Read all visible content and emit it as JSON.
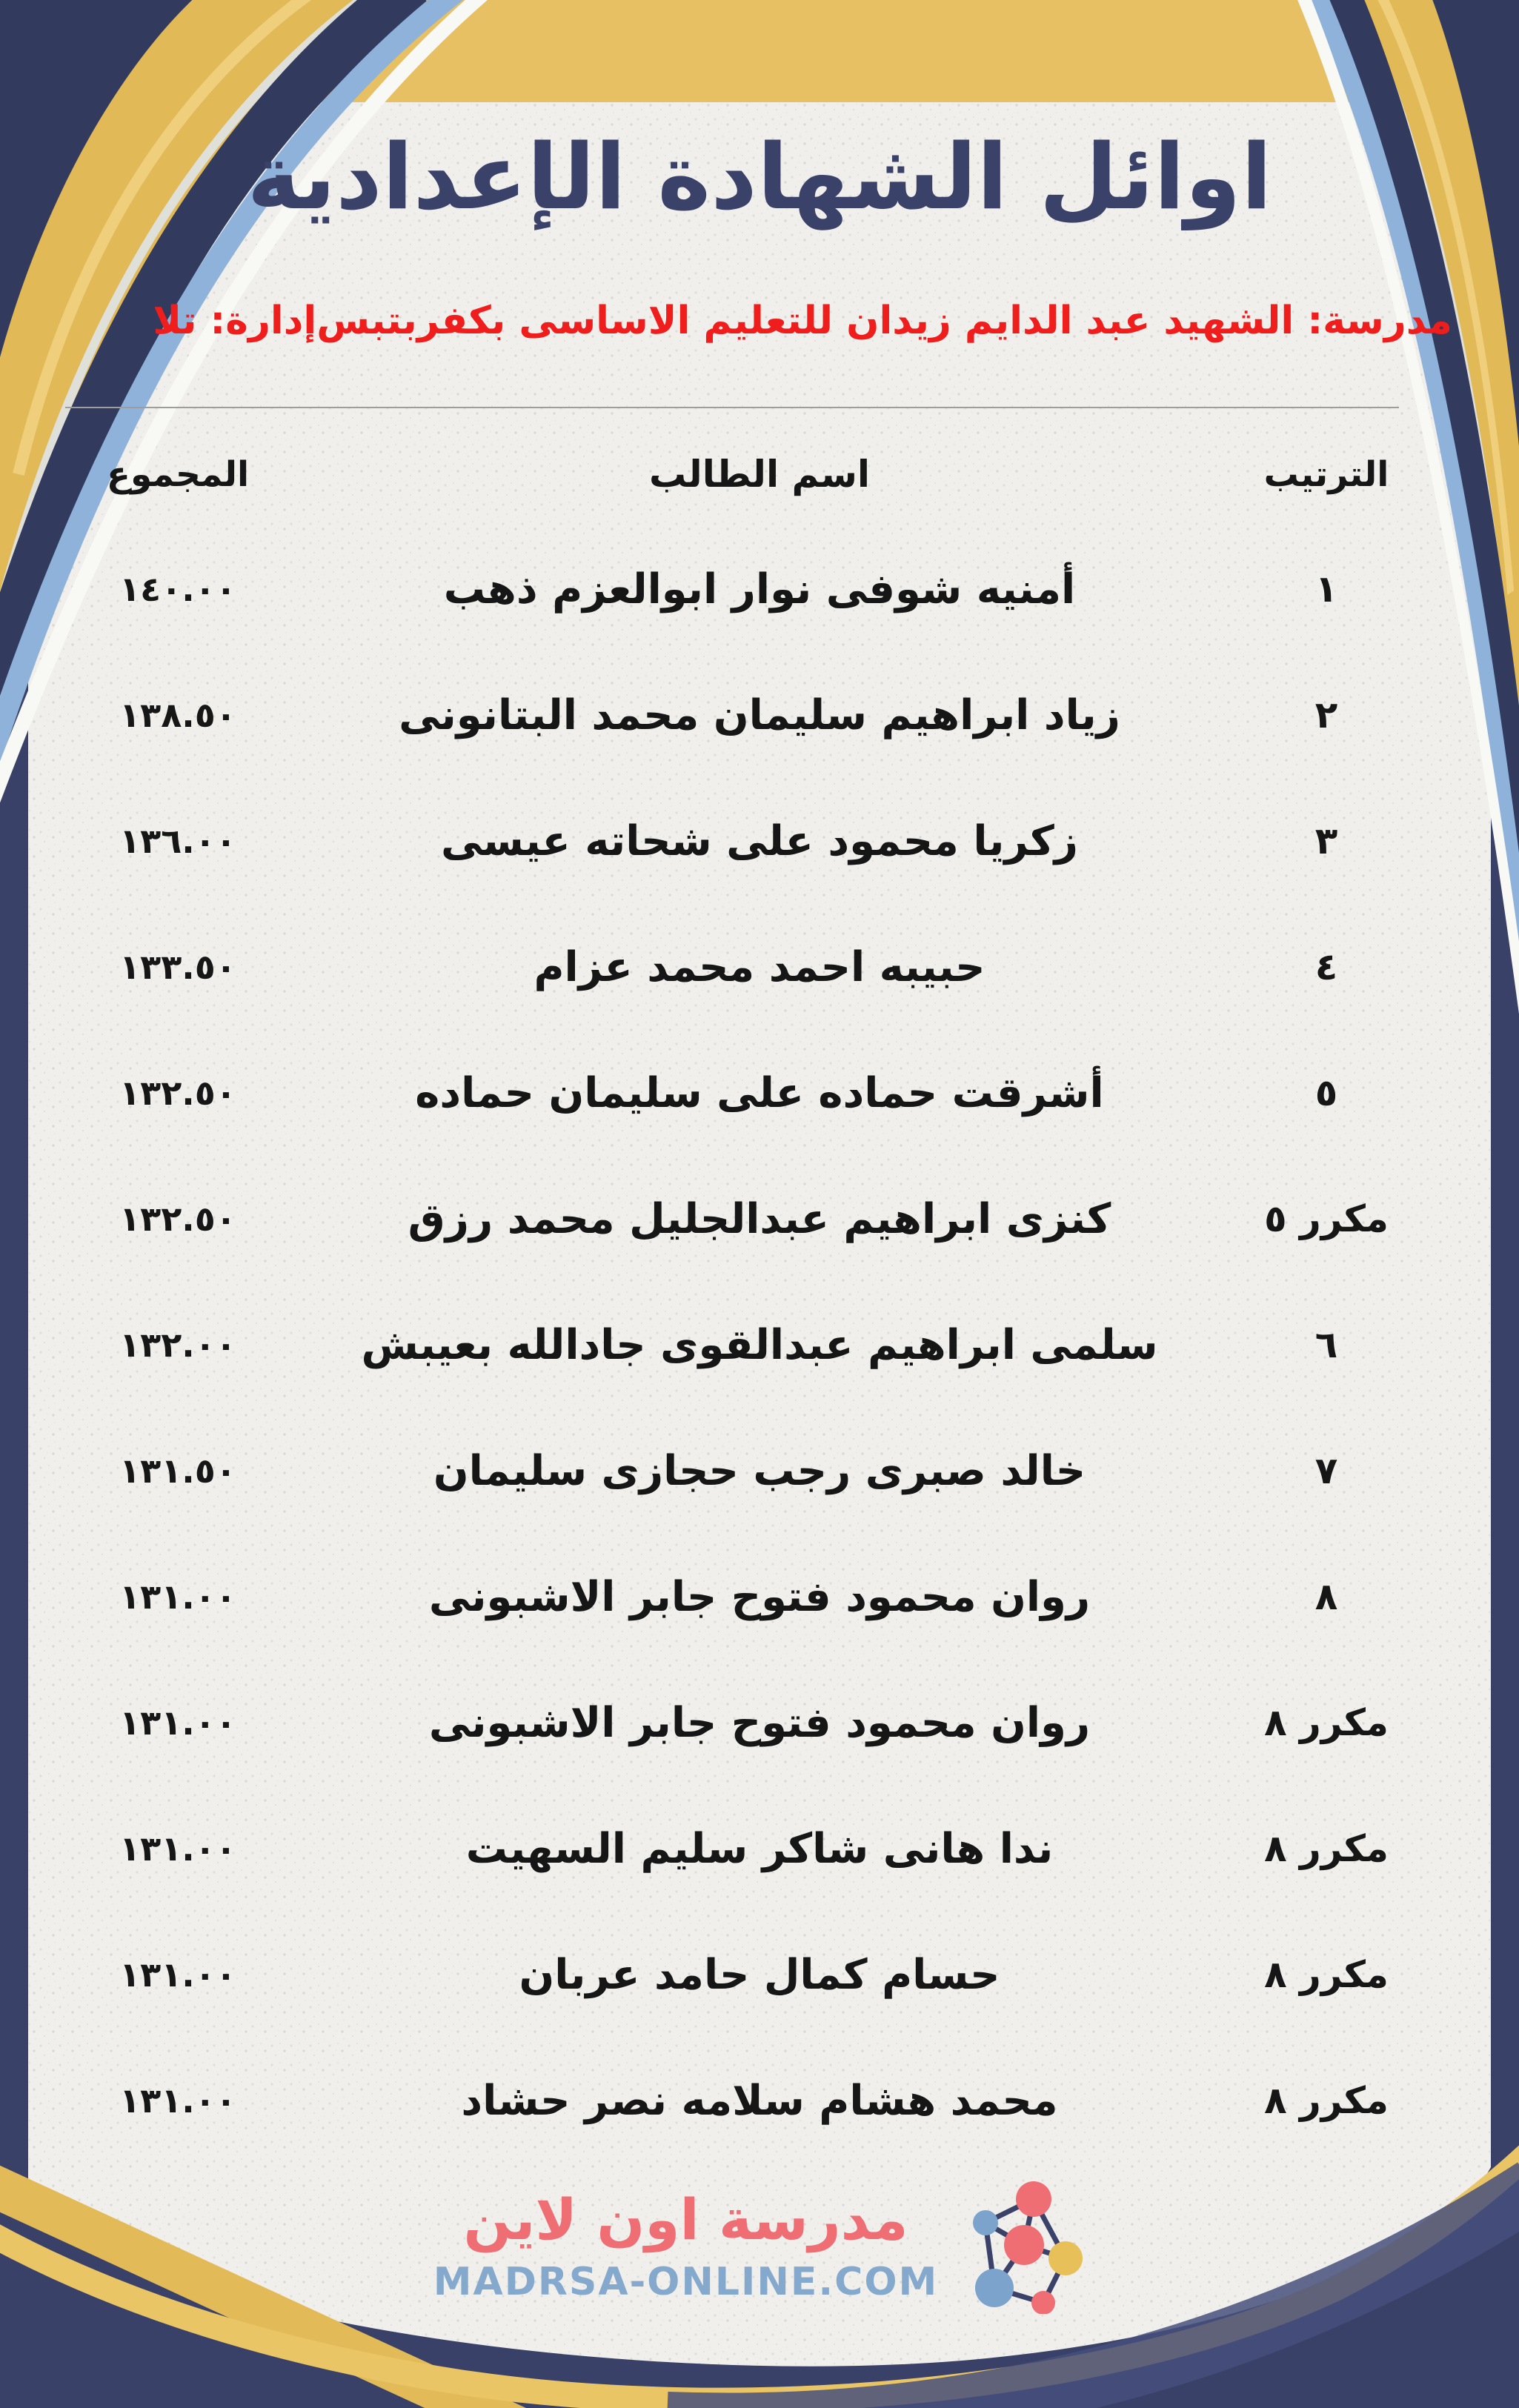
{
  "header": {
    "title": "اوائل الشهادة الإعدادية",
    "school": "مدرسة: الشهيد عبد الدايم زيدان للتعليم الاساسى بكفربتبس",
    "administration": "إدارة: تلا"
  },
  "table": {
    "headers": {
      "rank": "الترتيب",
      "name": "اسم الطالب",
      "total": "المجموع"
    },
    "rows": [
      {
        "rank": "١",
        "name": "أمنيه شوفى نوار ابوالعزم ذهب",
        "total": "١٤٠.٠٠"
      },
      {
        "rank": "٢",
        "name": "زياد ابراهيم سليمان محمد البتانونى",
        "total": "١٣٨.٥٠"
      },
      {
        "rank": "٣",
        "name": "زكريا محمود على شحاته عيسى",
        "total": "١٣٦.٠٠"
      },
      {
        "rank": "٤",
        "name": "حبيبه احمد محمد عزام",
        "total": "١٣٣.٥٠"
      },
      {
        "rank": "٥",
        "name": "أشرقت حماده على سليمان حماده",
        "total": "١٣٢.٥٠"
      },
      {
        "rank": "مكرر ٥",
        "name": "كنزى ابراهيم عبدالجليل محمد رزق",
        "total": "١٣٢.٥٠"
      },
      {
        "rank": "٦",
        "name": "سلمى ابراهيم عبدالقوى جادالله بعيبش",
        "total": "١٣٢.٠٠"
      },
      {
        "rank": "٧",
        "name": "خالد صبرى رجب حجازى سليمان",
        "total": "١٣١.٥٠"
      },
      {
        "rank": "٨",
        "name": "روان محمود فتوح جابر الاشبونى",
        "total": "١٣١.٠٠"
      },
      {
        "rank": "مكرر ٨",
        "name": "روان محمود فتوح جابر الاشبونى",
        "total": "١٣١.٠٠"
      },
      {
        "rank": "مكرر ٨",
        "name": "ندا هانى شاكر سليم السهيت",
        "total": "١٣١.٠٠"
      },
      {
        "rank": "مكرر ٨",
        "name": "حسام كمال حامد عربان",
        "total": "١٣١.٠٠"
      },
      {
        "rank": "مكرر ٨",
        "name": "محمد هشام سلامه نصر حشاد",
        "total": "١٣١.٠٠"
      }
    ]
  },
  "footer": {
    "brand_arabic": "مدرسة اون لاين",
    "brand_domain": "MADRSA-ONLINE.COM"
  },
  "colors": {
    "navy": "#3a4168",
    "gold": "#e6c063",
    "paper": "#f0efec",
    "title_navy": "#3b4269",
    "subtitle_red": "#f01d1d",
    "text_black": "#161616",
    "brand_coral": "#ef6e74",
    "brand_blue": "#84a9cd",
    "accent_light_blue": "#8fb2da"
  }
}
